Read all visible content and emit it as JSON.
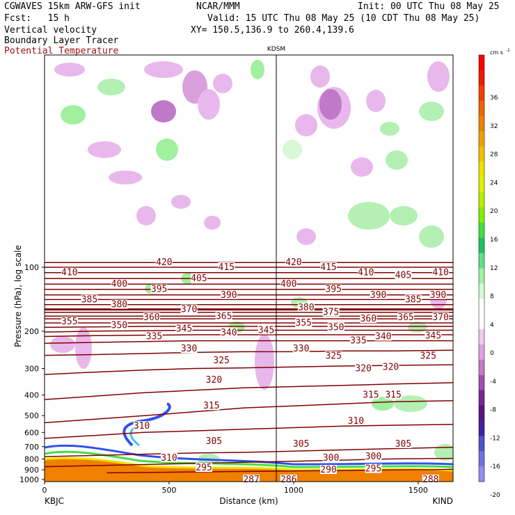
{
  "header": {
    "model": "CGWAVES 15km ARW-GFS init",
    "org": "NCAR/MMM",
    "init": "Init: 00 UTC Thu 08 May 25",
    "fcst": "Fcst:   15 h",
    "valid": "Valid: 15 UTC Thu 08 May 25 (10 CDT Thu 08 May 25)",
    "field1": "Vertical velocity",
    "field2": "Boundary Layer Tracer",
    "field3": "Potential Temperature",
    "xy": "XY= 150.5,136.9 to 260.4,139.6"
  },
  "colors": {
    "theta_line": "#800000",
    "field3_text": "#a01010"
  },
  "chart_data": {
    "type": "line",
    "station_marker": "KDSM",
    "xlabel": "Distance (km)",
    "ylabel": "Pressure (hPa), log scale",
    "y_scale": "log",
    "xlim": [
      0,
      1640
    ],
    "xticks": [
      0,
      500,
      1000,
      1500
    ],
    "yticks": [
      100,
      200,
      300,
      400,
      500,
      600,
      700,
      800,
      900,
      1000
    ],
    "endpoints": {
      "left": "KBJC",
      "right": "KIND"
    },
    "station_km": 930,
    "colorbar": {
      "units": "cm s",
      "units_exp": "-1",
      "labels": [
        36,
        32,
        28,
        24,
        20,
        16,
        12,
        8,
        4,
        0,
        -4,
        -8,
        -12,
        -16,
        -20
      ],
      "colors": [
        "#ff0000",
        "#ee1c00",
        "#f04000",
        "#f06400",
        "#f08000",
        "#f0a000",
        "#f0c000",
        "#f0e000",
        "#e0f000",
        "#b4f000",
        "#80f000",
        "#40e040",
        "#20c060",
        "#60e080",
        "#a0f0a0",
        "#d0fad0",
        "#ffffff",
        "#ffffff",
        "#f0c8f0",
        "#e0a0e0",
        "#c878c8",
        "#a050b0",
        "#782890",
        "#5a1480",
        "#4020a0",
        "#5050d0",
        "#7070e0",
        "#9090f0"
      ]
    },
    "theta_contours": [
      {
        "theta": 295,
        "p": [
          930,
          925,
          920,
          915,
          910,
          905,
          900,
          900,
          895
        ],
        "pts_x": [
          250,
          450,
          650,
          850,
          1050,
          1250,
          1450,
          1550,
          1640
        ]
      },
      {
        "theta": 300,
        "p": [
          870,
          860,
          850,
          840,
          830,
          820,
          810,
          800,
          795
        ],
        "pts_x": [
          0,
          200,
          400,
          600,
          800,
          1000,
          1200,
          1400,
          1640
        ]
      },
      {
        "theta": 305,
        "p": [
          780,
          770,
          760,
          750,
          745,
          735,
          725,
          715,
          705
        ],
        "pts_x": [
          0,
          200,
          400,
          600,
          800,
          1000,
          1200,
          1400,
          1640
        ]
      },
      {
        "theta": 310,
        "p": [
          640,
          620,
          600,
          590,
          580,
          570,
          560,
          555,
          550
        ],
        "pts_x": [
          0,
          200,
          400,
          600,
          800,
          1000,
          1200,
          1400,
          1640
        ]
      },
      {
        "theta": 315,
        "p": [
          540,
          520,
          500,
          480,
          460,
          450,
          440,
          430,
          425
        ],
        "pts_x": [
          0,
          200,
          400,
          600,
          800,
          1000,
          1200,
          1400,
          1640
        ]
      },
      {
        "theta": 320,
        "p": [
          420,
          405,
          390,
          380,
          370,
          365,
          360,
          355,
          350
        ],
        "pts_x": [
          0,
          200,
          400,
          600,
          800,
          1000,
          1200,
          1400,
          1640
        ]
      },
      {
        "theta": 325,
        "p": [
          320,
          312,
          305,
          300,
          298,
          295,
          292,
          290,
          288
        ],
        "pts_x": [
          0,
          200,
          400,
          600,
          800,
          1000,
          1200,
          1400,
          1640
        ]
      },
      {
        "theta": 330,
        "p": [
          260,
          258,
          255,
          252,
          250,
          250,
          248,
          248,
          246
        ],
        "pts_x": [
          0,
          200,
          400,
          600,
          800,
          1000,
          1200,
          1400,
          1640
        ]
      },
      {
        "theta": 335,
        "p": [
          228,
          226,
          224,
          222,
          222,
          222,
          222,
          222,
          222
        ],
        "pts_x": [
          0,
          200,
          400,
          600,
          800,
          1000,
          1200,
          1400,
          1640
        ]
      },
      {
        "theta": 340,
        "p": [
          212,
          210,
          209,
          208,
          208,
          208,
          208,
          208,
          208
        ],
        "pts_x": [
          0,
          200,
          400,
          600,
          800,
          1000,
          1200,
          1400,
          1640
        ]
      },
      {
        "theta": 345,
        "p": [
          202,
          200,
          199,
          198,
          198,
          198,
          198,
          198,
          198
        ],
        "pts_x": [
          0,
          200,
          400,
          600,
          800,
          1000,
          1200,
          1400,
          1640
        ]
      },
      {
        "theta": 350,
        "p": [
          192,
          191,
          190,
          190,
          190,
          190,
          190,
          190,
          190
        ],
        "pts_x": [
          0,
          200,
          400,
          600,
          800,
          1000,
          1200,
          1400,
          1640
        ]
      },
      {
        "theta": 355,
        "p": [
          183,
          183,
          183,
          183,
          183,
          183,
          183,
          183,
          183
        ],
        "pts_x": [
          0,
          200,
          400,
          600,
          800,
          1000,
          1200,
          1400,
          1640
        ]
      },
      {
        "theta": 360,
        "p": [
          175,
          175,
          175,
          175,
          175,
          175,
          175,
          175,
          175
        ],
        "pts_x": [
          0,
          200,
          400,
          600,
          800,
          1000,
          1200,
          1400,
          1640
        ]
      },
      {
        "theta": 365,
        "p": [
          170,
          170,
          170,
          170,
          170,
          170,
          170,
          170,
          170
        ],
        "pts_x": [
          0,
          200,
          400,
          600,
          800,
          1000,
          1200,
          1400,
          1640
        ]
      },
      {
        "theta": 370,
        "p": [
          163,
          163,
          163,
          163,
          163,
          163,
          163,
          163,
          163
        ],
        "pts_x": [
          0,
          200,
          400,
          600,
          800,
          1000,
          1200,
          1400,
          1640
        ]
      },
      {
        "theta": 375,
        "p": [
          158,
          158,
          158,
          158,
          158,
          158,
          158,
          158,
          158
        ],
        "pts_x": [
          0,
          200,
          400,
          600,
          800,
          1000,
          1200,
          1400,
          1640
        ]
      },
      {
        "theta": 380,
        "p": [
          150,
          150,
          150,
          150,
          150,
          150,
          150,
          150,
          150
        ],
        "pts_x": [
          0,
          200,
          400,
          600,
          800,
          1000,
          1200,
          1400,
          1640
        ]
      },
      {
        "theta": 385,
        "p": [
          142,
          142,
          142,
          142,
          142,
          142,
          142,
          142,
          142
        ],
        "pts_x": [
          0,
          200,
          400,
          600,
          800,
          1000,
          1200,
          1400,
          1640
        ]
      },
      {
        "theta": 390,
        "p": [
          135,
          135,
          135,
          135,
          135,
          135,
          135,
          135,
          135
        ],
        "pts_x": [
          0,
          200,
          400,
          600,
          800,
          1000,
          1200,
          1400,
          1640
        ]
      },
      {
        "theta": 395,
        "p": [
          127,
          127,
          127,
          127,
          127,
          127,
          127,
          127,
          127
        ],
        "pts_x": [
          0,
          200,
          400,
          600,
          800,
          1000,
          1200,
          1400,
          1640
        ]
      },
      {
        "theta": 400,
        "p": [
          120,
          120,
          120,
          120,
          120,
          120,
          120,
          120,
          120
        ],
        "pts_x": [
          0,
          200,
          400,
          600,
          800,
          1000,
          1200,
          1400,
          1640
        ]
      },
      {
        "theta": 405,
        "p": [
          113,
          113,
          113,
          113,
          113,
          113,
          113,
          113,
          113
        ],
        "pts_x": [
          0,
          200,
          400,
          600,
          800,
          1000,
          1200,
          1400,
          1640
        ]
      },
      {
        "theta": 410,
        "p": [
          106,
          106,
          106,
          106,
          106,
          106,
          106,
          106,
          106
        ],
        "pts_x": [
          0,
          200,
          400,
          600,
          800,
          1000,
          1200,
          1400,
          1640
        ]
      },
      {
        "theta": 415,
        "p": [
          100,
          100,
          100,
          100,
          100,
          100,
          100,
          100,
          100
        ],
        "pts_x": [
          0,
          200,
          400,
          600,
          800,
          1000,
          1200,
          1400,
          1640
        ]
      },
      {
        "theta": 420,
        "p": [
          95,
          95,
          95,
          95,
          95,
          95,
          95,
          95,
          95
        ],
        "pts_x": [
          0,
          200,
          400,
          600,
          800,
          1000,
          1200,
          1400,
          1640
        ]
      }
    ],
    "contour_labels": [
      {
        "text": "410",
        "x": 100,
        "p": 106
      },
      {
        "text": "420",
        "x": 480,
        "p": 95
      },
      {
        "text": "415",
        "x": 730,
        "p": 100
      },
      {
        "text": "420",
        "x": 1000,
        "p": 95
      },
      {
        "text": "415",
        "x": 1140,
        "p": 100
      },
      {
        "text": "410",
        "x": 1290,
        "p": 106
      },
      {
        "text": "405",
        "x": 1440,
        "p": 109
      },
      {
        "text": "410",
        "x": 1590,
        "p": 106
      },
      {
        "text": "400",
        "x": 300,
        "p": 120
      },
      {
        "text": "395",
        "x": 460,
        "p": 127
      },
      {
        "text": "405",
        "x": 620,
        "p": 113
      },
      {
        "text": "400",
        "x": 980,
        "p": 120
      },
      {
        "text": "395",
        "x": 1160,
        "p": 127
      },
      {
        "text": "390",
        "x": 1340,
        "p": 135
      },
      {
        "text": "390",
        "x": 1580,
        "p": 135
      },
      {
        "text": "390",
        "x": 740,
        "p": 135
      },
      {
        "text": "385",
        "x": 180,
        "p": 142
      },
      {
        "text": "380",
        "x": 300,
        "p": 150
      },
      {
        "text": "385",
        "x": 1480,
        "p": 142
      },
      {
        "text": "370",
        "x": 580,
        "p": 158
      },
      {
        "text": "375",
        "x": 1150,
        "p": 163
      },
      {
        "text": "380",
        "x": 1050,
        "p": 155
      },
      {
        "text": "370",
        "x": 1590,
        "p": 172
      },
      {
        "text": "360",
        "x": 430,
        "p": 172
      },
      {
        "text": "365",
        "x": 720,
        "p": 170
      },
      {
        "text": "360",
        "x": 1300,
        "p": 175
      },
      {
        "text": "365",
        "x": 1450,
        "p": 172
      },
      {
        "text": "355",
        "x": 100,
        "p": 180
      },
      {
        "text": "350",
        "x": 300,
        "p": 188
      },
      {
        "text": "345",
        "x": 560,
        "p": 195
      },
      {
        "text": "340",
        "x": 740,
        "p": 203
      },
      {
        "text": "345",
        "x": 890,
        "p": 198
      },
      {
        "text": "355",
        "x": 1040,
        "p": 183
      },
      {
        "text": "350",
        "x": 1170,
        "p": 192
      },
      {
        "text": "340",
        "x": 1360,
        "p": 212
      },
      {
        "text": "345",
        "x": 1560,
        "p": 210
      },
      {
        "text": "335",
        "x": 440,
        "p": 212
      },
      {
        "text": "335",
        "x": 1260,
        "p": 222
      },
      {
        "text": "330",
        "x": 580,
        "p": 242
      },
      {
        "text": "330",
        "x": 1030,
        "p": 242
      },
      {
        "text": "325",
        "x": 710,
        "p": 275
      },
      {
        "text": "325",
        "x": 1160,
        "p": 262
      },
      {
        "text": "325",
        "x": 1540,
        "p": 262
      },
      {
        "text": "320",
        "x": 680,
        "p": 340
      },
      {
        "text": "320",
        "x": 1280,
        "p": 300
      },
      {
        "text": "320",
        "x": 1390,
        "p": 295
      },
      {
        "text": "315",
        "x": 670,
        "p": 450
      },
      {
        "text": "315",
        "x": 1310,
        "p": 400
      },
      {
        "text": "315",
        "x": 1400,
        "p": 400
      },
      {
        "text": "310",
        "x": 390,
        "p": 560
      },
      {
        "text": "310",
        "x": 1250,
        "p": 530
      },
      {
        "text": "305",
        "x": 680,
        "p": 660
      },
      {
        "text": "305",
        "x": 1030,
        "p": 680
      },
      {
        "text": "305",
        "x": 1440,
        "p": 680
      },
      {
        "text": "300",
        "x": 1150,
        "p": 790
      },
      {
        "text": "300",
        "x": 1320,
        "p": 780
      },
      {
        "text": "295",
        "x": 640,
        "p": 880
      },
      {
        "text": "290",
        "x": 1140,
        "p": 900
      },
      {
        "text": "295",
        "x": 1320,
        "p": 890
      },
      {
        "text": "310",
        "x": 500,
        "p": 790
      },
      {
        "text": "287",
        "x": 830,
        "p": 1000
      },
      {
        "text": "286",
        "x": 980,
        "p": 1000
      },
      {
        "text": "288",
        "x": 1550,
        "p": 1000
      }
    ]
  }
}
